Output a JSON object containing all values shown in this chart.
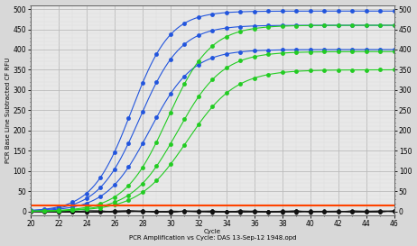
{
  "xlabel": "Cycle",
  "ylabel": "PCR Base Line Subtracted CF RFU",
  "xlabel2": "PCR Amplification vs Cycle: DAS 13-Sep-12 1948.opd",
  "xlim": [
    20,
    46
  ],
  "ylim": [
    -10,
    510
  ],
  "yticks": [
    0,
    50,
    100,
    150,
    200,
    250,
    300,
    350,
    400,
    450,
    500
  ],
  "xticks": [
    20,
    22,
    24,
    26,
    28,
    30,
    32,
    34,
    36,
    38,
    40,
    42,
    44,
    46
  ],
  "fig_bg": "#d8d8d8",
  "plot_bg": "#e8e8e8",
  "threshold_y": 15,
  "threshold_color": "#ff4400",
  "blue_curves": [
    {
      "L": 495,
      "k": 0.72,
      "x0": 27.2
    },
    {
      "L": 460,
      "k": 0.68,
      "x0": 27.8
    },
    {
      "L": 400,
      "k": 0.65,
      "x0": 28.5
    }
  ],
  "green_curves": [
    {
      "L": 460,
      "k": 0.65,
      "x0": 29.8
    },
    {
      "L": 395,
      "k": 0.62,
      "x0": 30.5
    },
    {
      "L": 350,
      "k": 0.58,
      "x0": 31.2
    }
  ],
  "blue_color": "#2255dd",
  "green_color": "#22cc22",
  "black_color": "#111111",
  "marker_size": 3.5,
  "grid_color": "#bbbbbb",
  "grid_minor_color": "#dddddd",
  "right_yticks": [
    0,
    50,
    100,
    150,
    200,
    250,
    300,
    350,
    400,
    450,
    500
  ]
}
